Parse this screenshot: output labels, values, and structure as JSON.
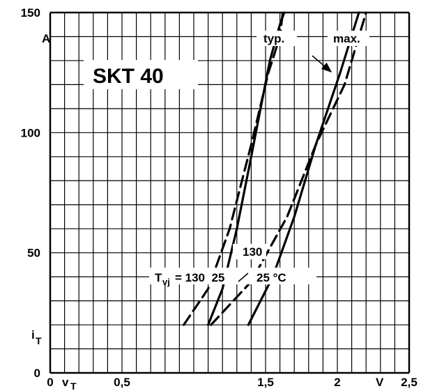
{
  "chart_data": {
    "type": "line",
    "title": "SKT 40",
    "xlim": [
      0,
      2.5
    ],
    "ylim": [
      0,
      150
    ],
    "grid": true,
    "x_ticks": [
      {
        "value": 0,
        "label": "0"
      },
      {
        "value": 0.5,
        "label": "0,5"
      },
      {
        "value": 1.5,
        "label": "1,5"
      },
      {
        "value": 2,
        "label": "2"
      },
      {
        "value": 2.5,
        "label": "2,5"
      }
    ],
    "y_ticks": [
      {
        "value": 0,
        "label": "0"
      },
      {
        "value": 50,
        "label": "50"
      },
      {
        "value": 100,
        "label": "100"
      },
      {
        "value": 150,
        "label": "150"
      }
    ],
    "x_symbol_main": "v",
    "x_symbol_sub": "T",
    "x_unit": "V",
    "y_symbol_main": "i",
    "y_symbol_sub": "T",
    "y_unit": "A",
    "legend_typ": "typ.",
    "legend_max": "max.",
    "temp_prefix_main": "T",
    "temp_prefix_sub": "vj",
    "temp_text": "= 130  25",
    "temp_right": "25 °C",
    "temp_130": "130",
    "series": [
      {
        "group": "typ",
        "tvj": "130",
        "style": "dashed",
        "points": [
          [
            0.93,
            20
          ],
          [
            1.1,
            35
          ],
          [
            1.25,
            60
          ],
          [
            1.4,
            95
          ],
          [
            1.52,
            125
          ],
          [
            1.6,
            140
          ],
          [
            1.62,
            150
          ]
        ]
      },
      {
        "group": "typ",
        "tvj": "25",
        "style": "solid",
        "points": [
          [
            1.1,
            20
          ],
          [
            1.2,
            35
          ],
          [
            1.3,
            60
          ],
          [
            1.4,
            90
          ],
          [
            1.53,
            130
          ],
          [
            1.6,
            145
          ],
          [
            1.63,
            150
          ]
        ]
      },
      {
        "group": "max",
        "tvj": "130",
        "style": "dashed",
        "points": [
          [
            1.12,
            20
          ],
          [
            1.4,
            38
          ],
          [
            1.65,
            65
          ],
          [
            1.85,
            95
          ],
          [
            2.05,
            120
          ],
          [
            2.2,
            150
          ]
        ]
      },
      {
        "group": "max",
        "tvj": "25",
        "style": "solid",
        "points": [
          [
            1.38,
            20
          ],
          [
            1.55,
            40
          ],
          [
            1.7,
            65
          ],
          [
            1.85,
            95
          ],
          [
            2.02,
            125
          ],
          [
            2.15,
            150
          ]
        ]
      }
    ]
  }
}
